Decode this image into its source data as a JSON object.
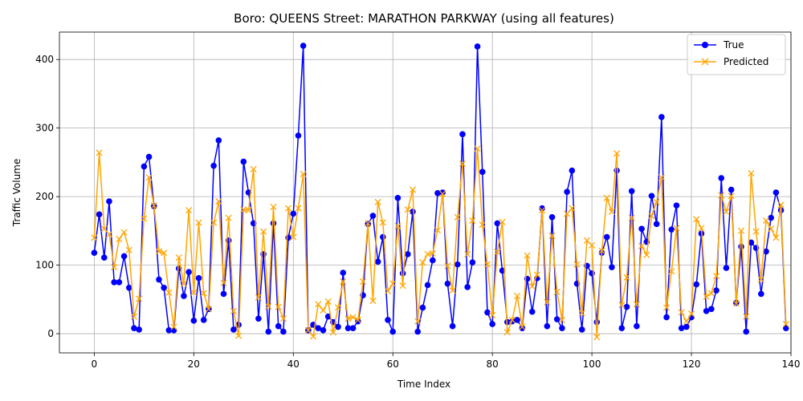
{
  "chart_data": {
    "type": "line",
    "title": "Boro: QUEENS Street: MARATHON PARKWAY (using all features)",
    "xlabel": "Time Index",
    "ylabel": "Traffic Volume",
    "xlim": [
      -7,
      140
    ],
    "ylim": [
      -28,
      440
    ],
    "xticks": [
      0,
      20,
      40,
      60,
      80,
      100,
      120,
      140
    ],
    "yticks": [
      0,
      100,
      200,
      300,
      400
    ],
    "grid": true,
    "legend_position": "top-right",
    "series": [
      {
        "name": "True",
        "color": "#0000ff",
        "marker": "circle",
        "values": [
          118,
          174,
          111,
          193,
          75,
          75,
          113,
          67,
          8,
          6,
          244,
          258,
          186,
          79,
          67,
          5,
          5,
          95,
          55,
          90,
          19,
          81,
          20,
          36,
          245,
          282,
          58,
          136,
          6,
          13,
          251,
          206,
          161,
          22,
          116,
          3,
          161,
          11,
          3,
          140,
          175,
          289,
          420,
          5,
          13,
          8,
          5,
          25,
          17,
          10,
          89,
          8,
          8,
          18,
          56,
          160,
          172,
          105,
          141,
          20,
          3,
          198,
          88,
          116,
          178,
          3,
          38,
          71,
          107,
          205,
          206,
          73,
          11,
          101,
          291,
          68,
          104,
          419,
          236,
          31,
          14,
          161,
          92,
          17,
          18,
          20,
          8,
          80,
          32,
          81,
          183,
          11,
          170,
          21,
          8,
          207,
          238,
          73,
          6,
          99,
          88,
          17,
          118,
          141,
          97,
          238,
          8,
          39,
          208,
          11,
          153,
          134,
          201,
          160,
          316,
          24,
          152,
          187,
          8,
          10,
          24,
          72,
          146,
          33,
          36,
          63,
          227,
          96,
          210,
          45,
          127,
          3,
          133,
          125,
          58,
          120,
          169,
          206,
          180,
          8
        ]
      },
      {
        "name": "Predicted",
        "color": "#ffa500",
        "marker": "x",
        "values": [
          140,
          264,
          153,
          145,
          97,
          138,
          148,
          122,
          25,
          51,
          168,
          228,
          187,
          120,
          118,
          60,
          10,
          111,
          73,
          180,
          60,
          162,
          59,
          36,
          162,
          193,
          74,
          169,
          33,
          -3,
          181,
          180,
          240,
          53,
          149,
          40,
          185,
          39,
          22,
          183,
          141,
          183,
          233,
          5,
          -4,
          43,
          34,
          47,
          2,
          38,
          76,
          22,
          24,
          20,
          76,
          161,
          48,
          192,
          162,
          62,
          73,
          157,
          70,
          181,
          210,
          18,
          104,
          116,
          117,
          151,
          204,
          99,
          63,
          170,
          248,
          116,
          165,
          270,
          159,
          101,
          27,
          119,
          163,
          2,
          20,
          55,
          10,
          114,
          69,
          86,
          180,
          46,
          143,
          61,
          20,
          175,
          183,
          101,
          30,
          136,
          129,
          -5,
          121,
          198,
          178,
          263,
          42,
          82,
          169,
          43,
          128,
          115,
          172,
          192,
          228,
          38,
          91,
          154,
          31,
          18,
          29,
          167,
          154,
          54,
          59,
          84,
          202,
          178,
          201,
          44,
          150,
          25,
          234,
          149,
          79,
          165,
          153,
          140,
          188,
          14
        ]
      }
    ]
  }
}
